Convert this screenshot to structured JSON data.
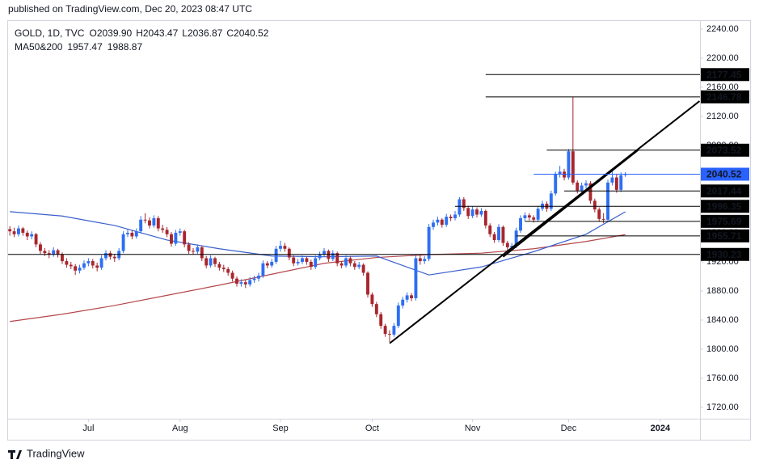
{
  "chart_data": {
    "type": "candlestick",
    "published": "published on TradingView.com, Dec 20, 2023 08:47 UTC",
    "symbol": "GOLD, 1D, TVC",
    "ohlc_labels": [
      {
        "prefix": "O",
        "label": "2039.90"
      },
      {
        "prefix": "H",
        "label": "2043.47"
      },
      {
        "prefix": "L",
        "label": "2036.87"
      },
      {
        "prefix": "C",
        "label": "2040.52"
      }
    ],
    "indicator_label": "MA50&200",
    "logo": "TradingView",
    "up_color": "#2e6ff2",
    "down_color": "#a8262d",
    "xlim": [
      -0.4,
      158.1
    ],
    "ylim": [
      1704.4,
      2252.2
    ],
    "xticks": [
      {
        "value": 18,
        "label": "Jul"
      },
      {
        "value": 39,
        "label": "Aug"
      },
      {
        "value": 62,
        "label": "Sep"
      },
      {
        "value": 83,
        "label": "Oct"
      },
      {
        "value": 106,
        "label": "Nov"
      },
      {
        "value": 128,
        "label": "Dec"
      },
      {
        "value": 149,
        "label": "2024"
      }
    ],
    "yticks": [
      {
        "value": 2240,
        "label": "2240.00"
      },
      {
        "value": 2200,
        "label": "2200.00"
      },
      {
        "value": 2160,
        "label": "2160.00"
      },
      {
        "value": 2120,
        "label": "2120.00"
      },
      {
        "value": 2080,
        "label": "2080.00"
      },
      {
        "value": 2040,
        "label": "2040.00"
      },
      {
        "value": 2000,
        "label": "2000.00"
      },
      {
        "value": 1960,
        "label": "1960.00"
      },
      {
        "value": 1920,
        "label": "1920.00"
      },
      {
        "value": 1880,
        "label": "1880.00"
      },
      {
        "value": 1840,
        "label": "1840.00"
      },
      {
        "value": 1800,
        "label": "1800.00"
      },
      {
        "value": 1760,
        "label": "1760.00"
      },
      {
        "value": 1720,
        "label": "1720.00"
      }
    ],
    "grid": false,
    "candles": [
      [
        1965,
        1969,
        1956,
        1962
      ],
      [
        1962,
        1967,
        1954,
        1958
      ],
      [
        1958,
        1970,
        1955,
        1966
      ],
      [
        1966,
        1968,
        1956,
        1960
      ],
      [
        1960,
        1963,
        1950,
        1955
      ],
      [
        1955,
        1962,
        1951,
        1958
      ],
      [
        1958,
        1960,
        1940,
        1944
      ],
      [
        1944,
        1947,
        1931,
        1935
      ],
      [
        1935,
        1939,
        1928,
        1932
      ],
      [
        1932,
        1936,
        1925,
        1930
      ],
      [
        1930,
        1940,
        1927,
        1936
      ],
      [
        1936,
        1938,
        1926,
        1930
      ],
      [
        1930,
        1933,
        1917,
        1921
      ],
      [
        1921,
        1925,
        1912,
        1916
      ],
      [
        1916,
        1920,
        1910,
        1914
      ],
      [
        1914,
        1917,
        1902,
        1908
      ],
      [
        1908,
        1916,
        1904,
        1912
      ],
      [
        1912,
        1922,
        1909,
        1918
      ],
      [
        1918,
        1925,
        1914,
        1921
      ],
      [
        1921,
        1924,
        1911,
        1915
      ],
      [
        1915,
        1919,
        1907,
        1912
      ],
      [
        1912,
        1929,
        1909,
        1925
      ],
      [
        1925,
        1936,
        1922,
        1932
      ],
      [
        1932,
        1935,
        1923,
        1927
      ],
      [
        1927,
        1931,
        1920,
        1925
      ],
      [
        1925,
        1939,
        1922,
        1935
      ],
      [
        1935,
        1962,
        1932,
        1958
      ],
      [
        1958,
        1965,
        1954,
        1960
      ],
      [
        1960,
        1963,
        1951,
        1955
      ],
      [
        1955,
        1966,
        1952,
        1962
      ],
      [
        1962,
        1983,
        1959,
        1978
      ],
      [
        1978,
        1987,
        1973,
        1977
      ],
      [
        1977,
        1981,
        1966,
        1970
      ],
      [
        1970,
        1984,
        1967,
        1980
      ],
      [
        1980,
        1983,
        1962,
        1966
      ],
      [
        1966,
        1971,
        1960,
        1964
      ],
      [
        1964,
        1968,
        1954,
        1958
      ],
      [
        1958,
        1961,
        1941,
        1945
      ],
      [
        1945,
        1964,
        1942,
        1960
      ],
      [
        1960,
        1966,
        1956,
        1962
      ],
      [
        1962,
        1964,
        1940,
        1944
      ],
      [
        1944,
        1947,
        1931,
        1935
      ],
      [
        1935,
        1939,
        1930,
        1934
      ],
      [
        1934,
        1944,
        1931,
        1940
      ],
      [
        1940,
        1942,
        1921,
        1925
      ],
      [
        1925,
        1928,
        1911,
        1915
      ],
      [
        1915,
        1929,
        1912,
        1925
      ],
      [
        1925,
        1927,
        1913,
        1917
      ],
      [
        1917,
        1920,
        1908,
        1912
      ],
      [
        1912,
        1916,
        1906,
        1910
      ],
      [
        1910,
        1913,
        1901,
        1905
      ],
      [
        1905,
        1908,
        1893,
        1897
      ],
      [
        1897,
        1900,
        1886,
        1890
      ],
      [
        1890,
        1896,
        1886,
        1892
      ],
      [
        1892,
        1895,
        1884,
        1889
      ],
      [
        1889,
        1899,
        1886,
        1895
      ],
      [
        1895,
        1901,
        1891,
        1897
      ],
      [
        1897,
        1905,
        1893,
        1901
      ],
      [
        1901,
        1922,
        1898,
        1918
      ],
      [
        1918,
        1921,
        1911,
        1915
      ],
      [
        1915,
        1924,
        1912,
        1920
      ],
      [
        1920,
        1942,
        1917,
        1938
      ],
      [
        1938,
        1949,
        1934,
        1942
      ],
      [
        1942,
        1946,
        1934,
        1938
      ],
      [
        1938,
        1940,
        1922,
        1926
      ],
      [
        1926,
        1929,
        1914,
        1918
      ],
      [
        1918,
        1924,
        1915,
        1920
      ],
      [
        1920,
        1929,
        1917,
        1925
      ],
      [
        1925,
        1927,
        1916,
        1920
      ],
      [
        1920,
        1923,
        1909,
        1913
      ],
      [
        1913,
        1929,
        1910,
        1925
      ],
      [
        1925,
        1934,
        1922,
        1930
      ],
      [
        1930,
        1939,
        1927,
        1935
      ],
      [
        1935,
        1937,
        1920,
        1924
      ],
      [
        1924,
        1936,
        1921,
        1932
      ],
      [
        1932,
        1934,
        1914,
        1918
      ],
      [
        1918,
        1921,
        1911,
        1915
      ],
      [
        1915,
        1929,
        1912,
        1925
      ],
      [
        1925,
        1928,
        1914,
        1918
      ],
      [
        1918,
        1921,
        1909,
        1913
      ],
      [
        1913,
        1920,
        1910,
        1916
      ],
      [
        1916,
        1918,
        1901,
        1905
      ],
      [
        1905,
        1907,
        1871,
        1875
      ],
      [
        1875,
        1878,
        1858,
        1862
      ],
      [
        1862,
        1865,
        1844,
        1848
      ],
      [
        1848,
        1851,
        1828,
        1832
      ],
      [
        1832,
        1835,
        1817,
        1821
      ],
      [
        1821,
        1826,
        1810,
        1820
      ],
      [
        1820,
        1836,
        1817,
        1832
      ],
      [
        1832,
        1864,
        1829,
        1860
      ],
      [
        1860,
        1872,
        1856,
        1868
      ],
      [
        1868,
        1878,
        1864,
        1874
      ],
      [
        1874,
        1877,
        1866,
        1870
      ],
      [
        1870,
        1930,
        1867,
        1925
      ],
      [
        1925,
        1930,
        1916,
        1921
      ],
      [
        1921,
        1928,
        1917,
        1924
      ],
      [
        1924,
        1972,
        1921,
        1968
      ],
      [
        1968,
        1978,
        1964,
        1974
      ],
      [
        1974,
        1982,
        1970,
        1978
      ],
      [
        1978,
        1980,
        1967,
        1971
      ],
      [
        1971,
        1986,
        1968,
        1982
      ],
      [
        1982,
        1985,
        1976,
        1980
      ],
      [
        1980,
        1990,
        1977,
        1985
      ],
      [
        1985,
        2009,
        1982,
        2006
      ],
      [
        2006,
        2009,
        1990,
        1994
      ],
      [
        1994,
        1997,
        1979,
        1983
      ],
      [
        1983,
        1996,
        1980,
        1992
      ],
      [
        1992,
        1995,
        1981,
        1985
      ],
      [
        1985,
        1994,
        1982,
        1990
      ],
      [
        1990,
        1992,
        1966,
        1970
      ],
      [
        1970,
        1973,
        1954,
        1958
      ],
      [
        1958,
        1961,
        1946,
        1950
      ],
      [
        1950,
        1972,
        1947,
        1968
      ],
      [
        1968,
        1970,
        1942,
        1946
      ],
      [
        1946,
        1949,
        1932,
        1940
      ],
      [
        1940,
        1946,
        1936,
        1942
      ],
      [
        1942,
        1967,
        1939,
        1963
      ],
      [
        1963,
        1984,
        1960,
        1980
      ],
      [
        1980,
        1988,
        1976,
        1984
      ],
      [
        1984,
        1987,
        1977,
        1981
      ],
      [
        1981,
        1984,
        1974,
        1978
      ],
      [
        1978,
        1997,
        1975,
        1993
      ],
      [
        1993,
        2004,
        1990,
        2000
      ],
      [
        2000,
        2003,
        1989,
        1993
      ],
      [
        1993,
        2018,
        1990,
        2014
      ],
      [
        2014,
        2044,
        2011,
        2040
      ],
      [
        2040,
        2052,
        2036,
        2044
      ],
      [
        2044,
        2048,
        2032,
        2036
      ],
      [
        2036,
        2075,
        2033,
        2072
      ],
      [
        2072,
        2146.78,
        2026,
        2029
      ],
      [
        2029,
        2032,
        2014,
        2018
      ],
      [
        2018,
        2029,
        2015,
        2025
      ],
      [
        2025,
        2032,
        2021,
        2028
      ],
      [
        2028,
        2031,
        2000,
        2004
      ],
      [
        2004,
        2007,
        1988,
        1992
      ],
      [
        1992,
        1995,
        1975,
        1979
      ],
      [
        1979,
        1987,
        1973,
        1978
      ],
      [
        1978,
        2033,
        1975,
        2029
      ],
      [
        2029,
        2048,
        2025,
        2036
      ],
      [
        2036,
        2040,
        2015,
        2019
      ],
      [
        2019,
        2043,
        2016,
        2039
      ],
      [
        2039.9,
        2043.47,
        2036.87,
        2040.52
      ]
    ],
    "series": [
      {
        "name": "MA200",
        "color": "#b5474b",
        "x": [
          0,
          12,
          24,
          36,
          48,
          60,
          72,
          84,
          96,
          108,
          120,
          132,
          141
        ],
        "values": [
          1838,
          1848,
          1860,
          1874,
          1888,
          1903,
          1918,
          1926,
          1930,
          1932,
          1938,
          1948,
          1957.47
        ]
      },
      {
        "name": "MA50",
        "color": "#3a5fcd",
        "x": [
          0,
          12,
          24,
          36,
          48,
          60,
          72,
          84,
          96,
          108,
          120,
          132,
          141
        ],
        "values": [
          1989,
          1983,
          1970,
          1950,
          1938,
          1928,
          1927,
          1928,
          1902,
          1913,
          1934,
          1958,
          1988.87
        ]
      }
    ],
    "levels": [
      {
        "value": 2177.45,
        "from": 109
      },
      {
        "value": 2146.78,
        "from": 109
      },
      {
        "value": 2073.52,
        "from": 123
      },
      {
        "value": 2040.52,
        "from": 120,
        "color": "#2962ff"
      },
      {
        "value": 2017.44,
        "from": 127
      },
      {
        "value": 1996.35,
        "from": 102
      },
      {
        "value": 1975.69,
        "from": 118
      },
      {
        "value": 1955.71,
        "from": 116
      },
      {
        "value": 1930.23,
        "from": -0.4
      }
    ],
    "trendlines": [
      {
        "from": [
          87,
          1808
        ],
        "to": [
          158,
          2141
        ]
      },
      {
        "from": [
          113,
          1927
        ],
        "to": [
          144,
          2074
        ]
      }
    ]
  }
}
